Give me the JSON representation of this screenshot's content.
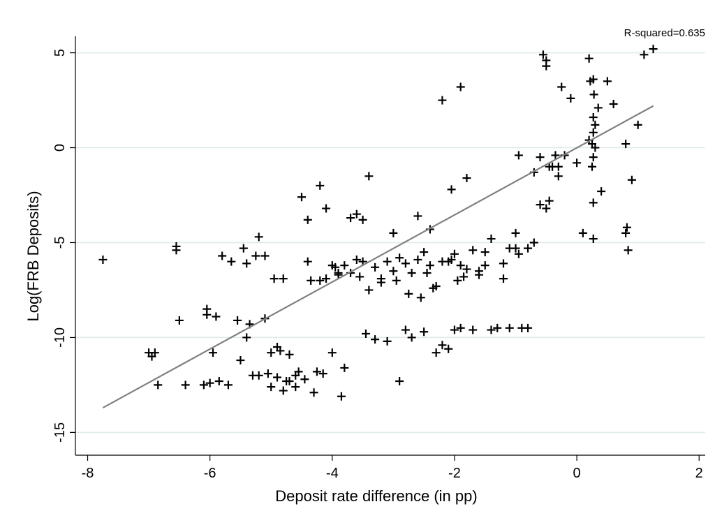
{
  "chart_data": {
    "type": "scatter",
    "title": "",
    "xlabel": "Deposit rate difference (in pp)",
    "ylabel": "Log(FRB Deposits)",
    "annotation": "R-squared=0.635",
    "xlim": [
      -8.2,
      2.1
    ],
    "ylim": [
      -16.2,
      5.5
    ],
    "xticks": [
      -8,
      -6,
      -4,
      -2,
      0,
      2
    ],
    "yticks": [
      5,
      0,
      -5,
      -10,
      -15
    ],
    "xtick_labels": [
      "-8",
      "-6",
      "-4",
      "-2",
      "0",
      "2"
    ],
    "ytick_labels": [
      "5",
      "0",
      "-5",
      "-10",
      "-15"
    ],
    "grid": "horizontal",
    "colors": {
      "points": "#000000",
      "fit": "#808080",
      "grid": "#dfeaea"
    },
    "fit_line": {
      "x": [
        -7.75,
        1.25
      ],
      "y": [
        -13.7,
        2.2
      ]
    },
    "x": [
      -7.75,
      -7.0,
      -6.95,
      -6.9,
      -6.85,
      -6.5,
      -6.55,
      -6.4,
      -6.1,
      -6.05,
      -6.0,
      -5.95,
      -5.9,
      -5.85,
      -5.8,
      -5.7,
      -5.55,
      -5.5,
      -5.45,
      -5.4,
      -5.35,
      -5.3,
      -5.25,
      -5.2,
      -5.1,
      -5.05,
      -5.0,
      -4.9,
      -4.85,
      -4.8,
      -4.75,
      -4.7,
      -4.6,
      -4.55,
      -4.5,
      -4.45,
      -4.4,
      -4.3,
      -4.25,
      -4.2,
      -4.15,
      -4.1,
      -4.0,
      -3.95,
      -3.9,
      -3.85,
      -3.8,
      -3.7,
      -3.6,
      -3.5,
      -3.45,
      -3.4,
      -3.3,
      -3.2,
      -3.1,
      -3.0,
      -2.9,
      -2.8,
      -2.7,
      -2.6,
      -2.5,
      -2.4,
      -2.3,
      -2.2,
      -2.1,
      -2.0,
      -1.9,
      -1.8,
      -1.7,
      -1.6,
      -1.5,
      -1.4,
      -1.3,
      -1.2,
      -1.1,
      -1.0,
      -0.95,
      -0.9,
      -0.8,
      -0.7,
      -0.6,
      -0.5,
      -0.45,
      -0.4,
      -0.3,
      -0.25,
      -0.2,
      -0.1,
      0.0,
      0.1,
      0.2,
      0.25,
      0.3,
      0.4,
      0.5,
      0.6,
      0.8,
      0.9,
      1.0,
      1.1,
      1.25,
      -5.1,
      -4.9,
      -5.0,
      -4.7,
      -4.6,
      -4.4,
      -4.0,
      -3.9,
      -3.5,
      -3.3,
      -3.2,
      -3.1,
      -2.9,
      -2.8,
      -2.6,
      -2.5,
      -2.4,
      -2.2,
      -2.0,
      -1.9,
      -1.7,
      -1.4,
      -1.1,
      -0.95,
      -0.8,
      -4.8,
      -4.2,
      -3.8,
      -3.6,
      -3.0,
      -2.7,
      -2.3,
      -2.1,
      -1.8,
      -1.5,
      -1.2,
      -1.0,
      -0.5,
      -0.3,
      0.27,
      0.27,
      0.27,
      0.27,
      0.27,
      0.27,
      -0.45,
      -0.5,
      -0.55,
      0.8,
      0.82,
      0.84,
      -6.05,
      -5.2,
      -4.1,
      -3.7,
      -3.4,
      -2.95,
      -2.35,
      -1.95,
      -1.6,
      -2.05,
      -1.85,
      -2.75,
      -2.55,
      -2.45,
      -3.55,
      -4.35,
      -4.95,
      -5.4,
      -5.65,
      -6.55,
      -2.2,
      -1.9,
      -2.05,
      -0.6,
      -0.7,
      -0.35,
      0.3,
      0.25,
      0.2,
      0.28,
      0.35,
      0.22
    ],
    "y": [
      -5.9,
      -10.8,
      -11.0,
      -10.8,
      -12.5,
      -9.1,
      -5.2,
      -12.5,
      -12.5,
      -8.5,
      -12.4,
      -10.8,
      -8.9,
      -12.3,
      -5.7,
      -12.5,
      -9.1,
      -11.2,
      -5.3,
      -10.0,
      -9.3,
      -12.0,
      -5.7,
      -12.0,
      -9.0,
      -11.9,
      -10.8,
      -12.1,
      -10.7,
      -12.8,
      -12.3,
      -10.9,
      -12.6,
      -11.8,
      -2.6,
      -12.2,
      -6.0,
      -12.9,
      -11.8,
      -2.0,
      -11.9,
      -3.2,
      -10.8,
      -6.3,
      -6.7,
      -13.1,
      -11.6,
      -3.7,
      -3.5,
      -3.8,
      -9.8,
      -1.5,
      -10.1,
      -6.9,
      -10.2,
      -4.5,
      -12.3,
      -9.6,
      -10.0,
      -3.6,
      -9.7,
      -4.3,
      -10.8,
      -10.4,
      -10.6,
      -9.6,
      -9.5,
      -1.6,
      -9.6,
      -6.5,
      -5.5,
      -9.6,
      -9.5,
      -6.9,
      -9.5,
      -4.5,
      -0.4,
      -9.5,
      -9.5,
      -5.0,
      -3.0,
      4.6,
      -2.8,
      -1.0,
      -1.5,
      3.2,
      -0.4,
      2.6,
      -0.8,
      -4.5,
      4.7,
      0.2,
      1.2,
      -2.3,
      3.5,
      2.3,
      0.2,
      -1.7,
      1.2,
      4.9,
      5.2,
      -5.7,
      -10.5,
      -12.6,
      -12.3,
      -12.0,
      -3.8,
      -6.2,
      -6.6,
      -6.0,
      -6.3,
      -7.1,
      -6.0,
      -5.8,
      -6.1,
      -5.9,
      -5.5,
      -6.2,
      -6.0,
      -5.6,
      -6.2,
      -5.4,
      -4.8,
      -5.3,
      -5.6,
      -5.3,
      -6.9,
      -7.0,
      -6.2,
      -5.9,
      -6.5,
      -6.6,
      -7.3,
      -6.0,
      -6.4,
      -6.2,
      -6.1,
      -5.3,
      -3.2,
      -1.0,
      -4.8,
      -2.9,
      -0.5,
      0.8,
      1.6,
      3.6,
      -1.0,
      4.3,
      4.9,
      -4.5,
      -4.2,
      -5.4,
      -8.8,
      -4.7,
      -6.9,
      -6.6,
      -7.5,
      -7.0,
      -7.4,
      -7.0,
      -6.7,
      -5.9,
      -6.8,
      -7.7,
      -7.9,
      -6.6,
      -6.8,
      -7.0,
      -6.9,
      -6.1,
      -6.0,
      -5.4,
      2.5,
      3.2,
      -2.2,
      -0.5,
      -1.3,
      -0.4,
      0.0,
      -1.0,
      0.4,
      2.8,
      2.1,
      3.5
    ]
  }
}
